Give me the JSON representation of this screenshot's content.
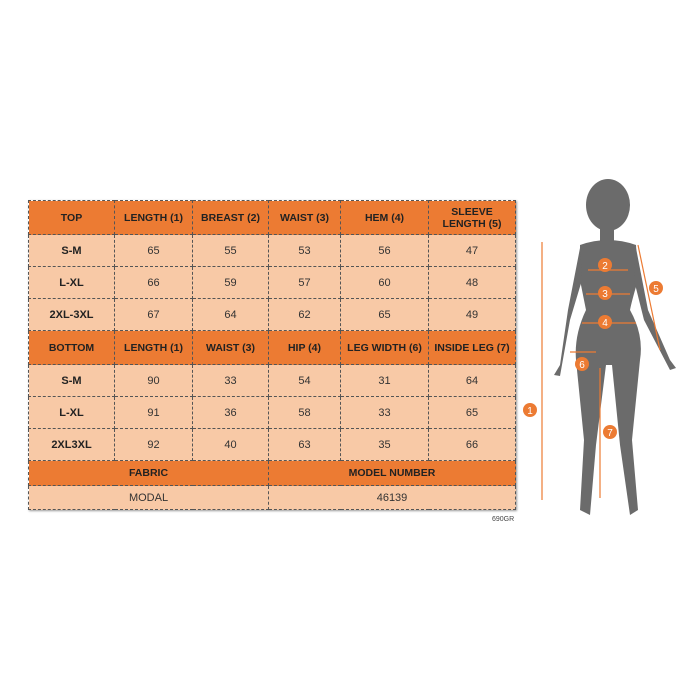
{
  "top": {
    "headers": [
      "TOP",
      "LENGTH (1)",
      "BREAST (2)",
      "WAIST (3)",
      "HEM (4)",
      "SLEEVE LENGTH (5)"
    ],
    "rows": [
      [
        "S-M",
        "65",
        "55",
        "53",
        "56",
        "47"
      ],
      [
        "L-XL",
        "66",
        "59",
        "57",
        "60",
        "48"
      ],
      [
        "2XL-3XL",
        "67",
        "64",
        "62",
        "65",
        "49"
      ]
    ]
  },
  "bottom": {
    "headers": [
      "BOTTOM",
      "LENGTH (1)",
      "WAIST (3)",
      "HIP (4)",
      "LEG WIDTH (6)",
      "INSIDE LEG (7)"
    ],
    "rows": [
      [
        "S-M",
        "90",
        "33",
        "54",
        "31",
        "64"
      ],
      [
        "L-XL",
        "91",
        "36",
        "58",
        "33",
        "65"
      ],
      [
        "2XL3XL",
        "92",
        "40",
        "63",
        "35",
        "66"
      ]
    ]
  },
  "fabric": {
    "label": "FABRIC",
    "value": "MODAL"
  },
  "model": {
    "label": "MODEL NUMBER",
    "value": "46139"
  },
  "code": "690GR",
  "figure": {
    "markers": [
      "1",
      "2",
      "3",
      "4",
      "5",
      "6",
      "7"
    ],
    "accent": "#ec7b33",
    "silhouette": "#6b6b6b"
  }
}
